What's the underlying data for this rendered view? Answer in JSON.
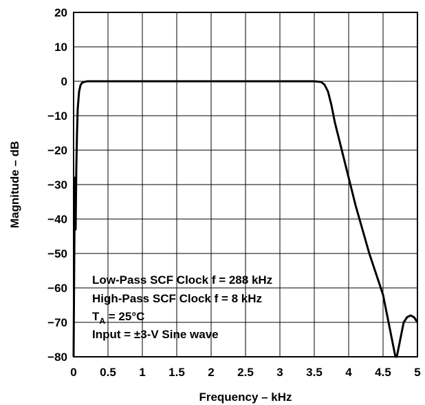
{
  "chart_data": {
    "type": "line",
    "title": "",
    "xlabel": "Frequency – kHz",
    "ylabel": "Magnitude – dB",
    "xlim": [
      0,
      5
    ],
    "ylim": [
      -80,
      20
    ],
    "grid": true,
    "x_ticks": [
      0,
      0.5,
      1,
      1.5,
      2,
      2.5,
      3,
      3.5,
      4,
      4.5,
      5
    ],
    "x_tick_labels": [
      "0",
      "0.5",
      "1",
      "1.5",
      "2",
      "2.5",
      "3",
      "3.5",
      "4",
      "4.5",
      "5"
    ],
    "y_ticks": [
      20,
      10,
      0,
      -10,
      -20,
      -30,
      -40,
      -50,
      -60,
      -70,
      -80
    ],
    "y_tick_labels": [
      "20",
      "10",
      "0",
      "−10",
      "−20",
      "−30",
      "−40",
      "−50",
      "−60",
      "−70",
      "−80"
    ],
    "series": [
      {
        "color": "#000000",
        "x": [
          0.0,
          0.01,
          0.02,
          0.025,
          0.03,
          0.035,
          0.04,
          0.05,
          0.06,
          0.08,
          0.1,
          0.12,
          0.15,
          0.2,
          0.25,
          0.3,
          1.0,
          2.0,
          3.0,
          3.5,
          3.6,
          3.65,
          3.7,
          3.75,
          3.8,
          3.9,
          4.0,
          4.1,
          4.2,
          4.3,
          4.4,
          4.5,
          4.55,
          4.6,
          4.65,
          4.68,
          4.7,
          4.72,
          4.75,
          4.78,
          4.8,
          4.85,
          4.9,
          4.95,
          5.0
        ],
        "y": [
          -80,
          -50,
          -28,
          -30,
          -43,
          -33,
          -25,
          -15,
          -8,
          -3,
          -1.2,
          -0.5,
          -0.2,
          0,
          0,
          0,
          0,
          0,
          0,
          0,
          -0.2,
          -1,
          -3,
          -7,
          -12,
          -20,
          -28,
          -36,
          -43,
          -50,
          -56,
          -62,
          -67,
          -72,
          -77,
          -80,
          -80,
          -78,
          -75,
          -72,
          -70,
          -68.5,
          -68,
          -68.5,
          -70
        ]
      }
    ],
    "annotations": [
      "Low-Pass SCF Clock f = 288 kHz",
      "High-Pass SCF Clock f = 8 kHz",
      "T",
      "A",
      " = 25°C",
      "Input = ±3-V Sine wave"
    ]
  }
}
